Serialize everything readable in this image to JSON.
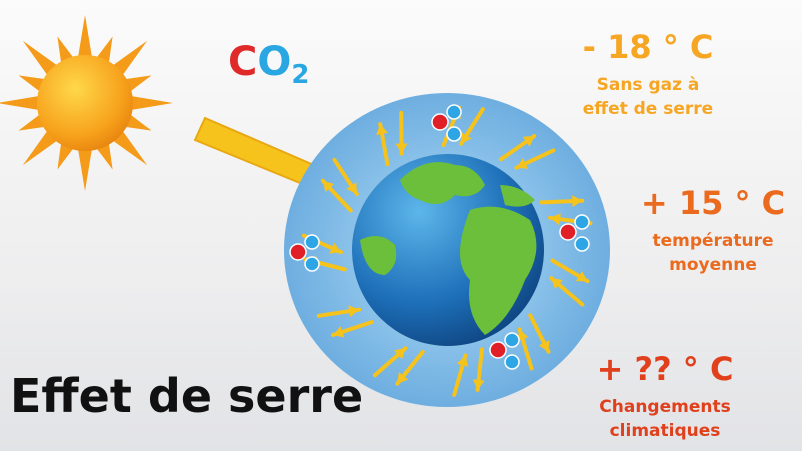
{
  "co2": {
    "c": "C",
    "o": "O",
    "sub": "2"
  },
  "levels": [
    {
      "temp": "- 18 ° C",
      "lines": [
        "Sans gaz à",
        "effet de serre"
      ]
    },
    {
      "temp": "+ 15 ° C",
      "lines": [
        "température",
        "moyenne"
      ]
    },
    {
      "temp": "+ ?? ° C",
      "lines": [
        "Changements",
        "climatiques"
      ]
    }
  ],
  "title": "Effet de serre"
}
